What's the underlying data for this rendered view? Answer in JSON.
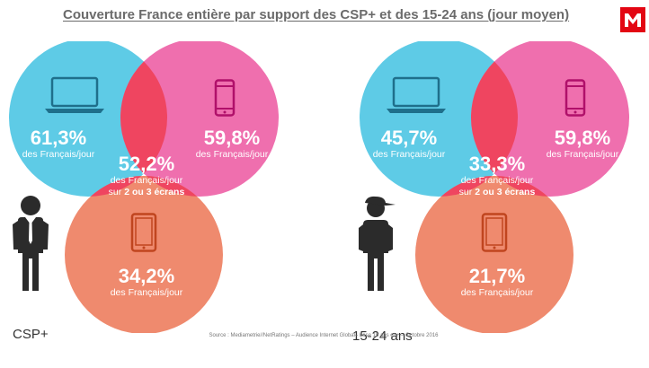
{
  "title": "Couverture France entière par support des CSP+ et des 15-24 ans (jour moyen)",
  "colors": {
    "computer_circle": "#5ecbe6",
    "mobile_circle": "#ef6fae",
    "tablet_circle": "#ef8a6e",
    "overlap": "#ef4560",
    "text": "#ffffff"
  },
  "diagrams": [
    {
      "group": "CSP+",
      "computer": {
        "percent": "61,3%",
        "caption": "des Français/jour"
      },
      "mobile": {
        "percent": "59,8%",
        "caption": "des Français/jour"
      },
      "tablet": {
        "percent": "34,2%",
        "caption": "des Français/jour"
      },
      "overlap": {
        "percent": "52,2%",
        "caption": "des Français/jour",
        "caption_prefix": "sur ",
        "caption_bold": "2 ou 3 écrans"
      }
    },
    {
      "group": "15-24 ans",
      "computer": {
        "percent": "45,7%",
        "caption": "des Français/jour"
      },
      "mobile": {
        "percent": "59,8%",
        "caption": "des Français/jour"
      },
      "tablet": {
        "percent": "21,7%",
        "caption": "des Français/jour"
      },
      "overlap": {
        "percent": "33,3%",
        "caption": "des Français/jour",
        "caption_prefix": "sur ",
        "caption_bold": "2 ou 3 écrans"
      }
    }
  ],
  "source": "Source : Mediametrie//NetRatings – Audience Internet Global– base 15 ans et + – Octobre 2016",
  "icons": [
    "laptop-icon",
    "smartphone-icon",
    "tablet-icon",
    "businessman-icon",
    "young-person-cap-icon",
    "mediametrie-logo-icon"
  ]
}
